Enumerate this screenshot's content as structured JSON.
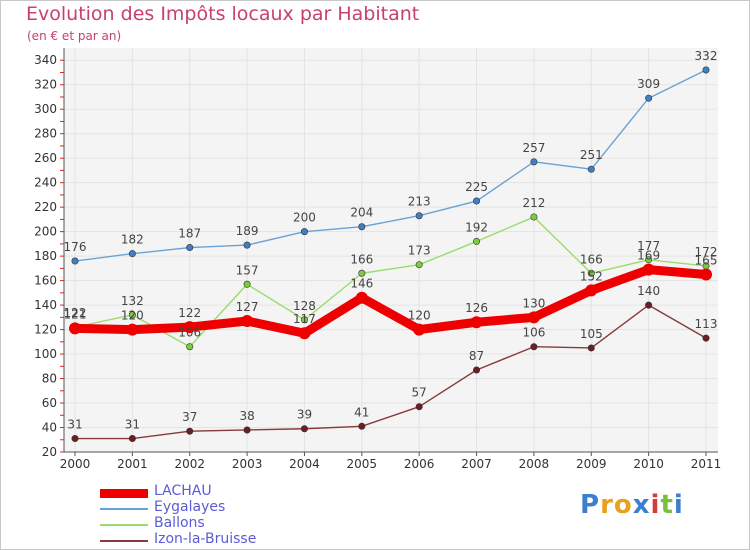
{
  "chart_data": {
    "type": "line",
    "title": "Evolution des Impôts locaux par Habitant",
    "subtitle": "(en € et par an)",
    "xlabel": "",
    "ylabel": "",
    "ylim": [
      20,
      350
    ],
    "yticks": [
      20,
      40,
      60,
      80,
      100,
      120,
      140,
      160,
      180,
      200,
      220,
      240,
      260,
      280,
      300,
      320,
      340
    ],
    "grid": true,
    "legend_position": "bottom-left",
    "x": [
      "2000",
      "2001",
      "2002",
      "2003",
      "2004",
      "2005",
      "2006",
      "2007",
      "2008",
      "2009",
      "2010",
      "2011"
    ],
    "series": [
      {
        "name": "Eygalayes",
        "color": "#6aa2d6",
        "marker": "#3f7fc4",
        "values": [
          176,
          182,
          187,
          189,
          200,
          204,
          213,
          225,
          257,
          251,
          309,
          332
        ],
        "labels": [
          "176",
          "182",
          "187",
          "189",
          "200",
          "204",
          "213",
          "225",
          "257",
          "251",
          "309",
          "332"
        ]
      },
      {
        "name": "Ballons",
        "color": "#9bdc6a",
        "marker": "#7ccc3f",
        "values": [
          122,
          132,
          106,
          157,
          128,
          166,
          173,
          192,
          212,
          166,
          177,
          172
        ],
        "labels": [
          "122",
          "132",
          "106",
          "157",
          "128",
          "166",
          "173",
          "192",
          "212",
          "166",
          "177",
          "172"
        ]
      },
      {
        "name": "Izon-la-Bruisse",
        "color": "#8a3a3a",
        "marker": "#6a1f22",
        "values": [
          31,
          31,
          37,
          38,
          39,
          41,
          57,
          87,
          106,
          105,
          140,
          113
        ],
        "labels": [
          "31",
          "31",
          "37",
          "38",
          "39",
          "41",
          "57",
          "87",
          "106",
          "105",
          "140",
          "113"
        ]
      },
      {
        "name": "LACHAU",
        "color": "#ee0000",
        "marker": "#ee0000",
        "values": [
          121,
          120,
          122,
          127,
          117,
          146,
          120,
          126,
          130,
          152,
          169,
          165
        ],
        "labels": [
          "121",
          "120",
          "122",
          "127",
          "117",
          "146",
          "120",
          "126",
          "130",
          "152",
          "169",
          "165"
        ]
      }
    ]
  },
  "legend": {
    "items": [
      {
        "label": "LACHAU",
        "color": "#ee0000",
        "thickness": 9
      },
      {
        "label": "Eygalayes",
        "color": "#6aa2d6",
        "thickness": 2
      },
      {
        "label": "Ballons",
        "color": "#9bdc6a",
        "thickness": 2
      },
      {
        "label": "Izon-la-Bruisse",
        "color": "#8a3a3a",
        "thickness": 2
      }
    ]
  },
  "logo": {
    "letters": [
      "P",
      "r",
      "o",
      "x",
      "i",
      "t",
      "i"
    ],
    "colors": [
      "#3b7fd0",
      "#e8a020",
      "#e8a020",
      "#3b7fd0",
      "#d23c3c",
      "#7cbf3c",
      "#3b7fd0"
    ]
  }
}
